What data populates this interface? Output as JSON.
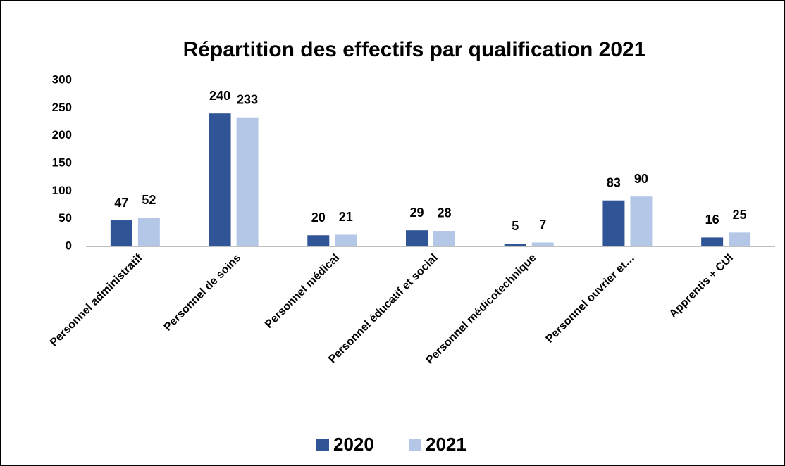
{
  "chart_data": {
    "type": "bar",
    "title": "Répartition des effectifs par qualification 2021",
    "categories": [
      "Personnel administratif",
      "Personnel de soins",
      "Personnel médical",
      "Personnel éducatif et social",
      "Personnel médicotechnique",
      "Personnel ouvrier et…",
      "Apprentis + CUI"
    ],
    "series": [
      {
        "name": "2020",
        "color": "#2f5597",
        "values": [
          47,
          240,
          20,
          29,
          5,
          83,
          16
        ]
      },
      {
        "name": "2021",
        "color": "#b4c7e7",
        "values": [
          52,
          233,
          21,
          28,
          7,
          90,
          25
        ]
      }
    ],
    "ylim": [
      0,
      300
    ],
    "yticks": [
      0,
      50,
      100,
      150,
      200,
      250,
      300
    ],
    "grid": false,
    "legend": "bottom"
  }
}
